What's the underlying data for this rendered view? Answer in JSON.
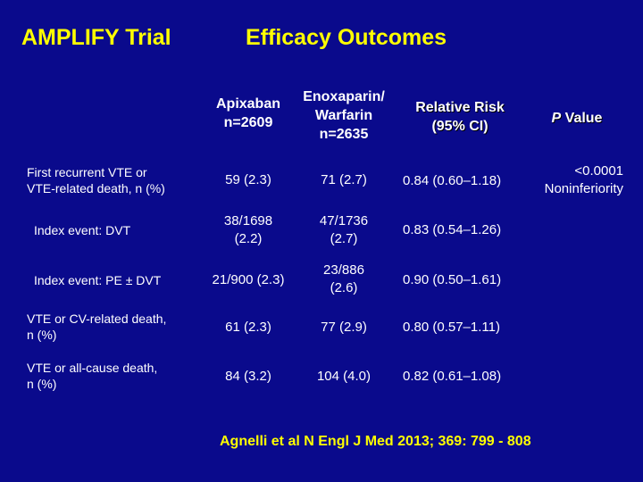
{
  "title_left": "AMPLIFY  Trial",
  "title_main": "Efficacy Outcomes",
  "headers": {
    "apixaban": [
      "Apixaban",
      "n=2609"
    ],
    "enoxaparin": [
      "Enoxaparin/",
      "Warfarin",
      "n=2635"
    ],
    "relative_risk": [
      "Relative Risk",
      "(95% CI)"
    ],
    "p_value_italic": "P",
    "p_value_rest": " Value"
  },
  "rows": [
    {
      "label": [
        "First recurrent VTE or",
        "VTE-related death, n (%)"
      ],
      "apixaban": [
        "59 (2.3)"
      ],
      "enoxaparin": [
        "71 (2.7)"
      ],
      "rr": "0.84 (0.60–1.18)",
      "p": [
        "<0.0001",
        "Noninferiority"
      ]
    },
    {
      "label": [
        "Index event:  DVT"
      ],
      "apixaban": [
        "38/1698",
        "(2.2)"
      ],
      "enoxaparin": [
        "47/1736",
        "(2.7)"
      ],
      "rr": "0.83 (0.54–1.26)",
      "p": []
    },
    {
      "label": [
        "Index event:  PE ± DVT"
      ],
      "apixaban": [
        "21/900 (2.3)"
      ],
      "enoxaparin": [
        "23/886",
        "(2.6)"
      ],
      "rr": "0.90 (0.50–1.61)",
      "p": []
    },
    {
      "label": [
        "VTE or CV-related death,",
        "n (%)"
      ],
      "apixaban": [
        "61 (2.3)"
      ],
      "enoxaparin": [
        "77 (2.9)"
      ],
      "rr": "0.80 (0.57–1.11)",
      "p": []
    },
    {
      "label": [
        "VTE or all-cause death,",
        "n (%)"
      ],
      "apixaban": [
        "84 (3.2)"
      ],
      "enoxaparin": [
        "104 (4.0)"
      ],
      "rr": "0.82 (0.61–1.08)",
      "p": []
    }
  ],
  "citation": "Agnelli et al  N Engl J Med 2013; 369: 799 - 808"
}
